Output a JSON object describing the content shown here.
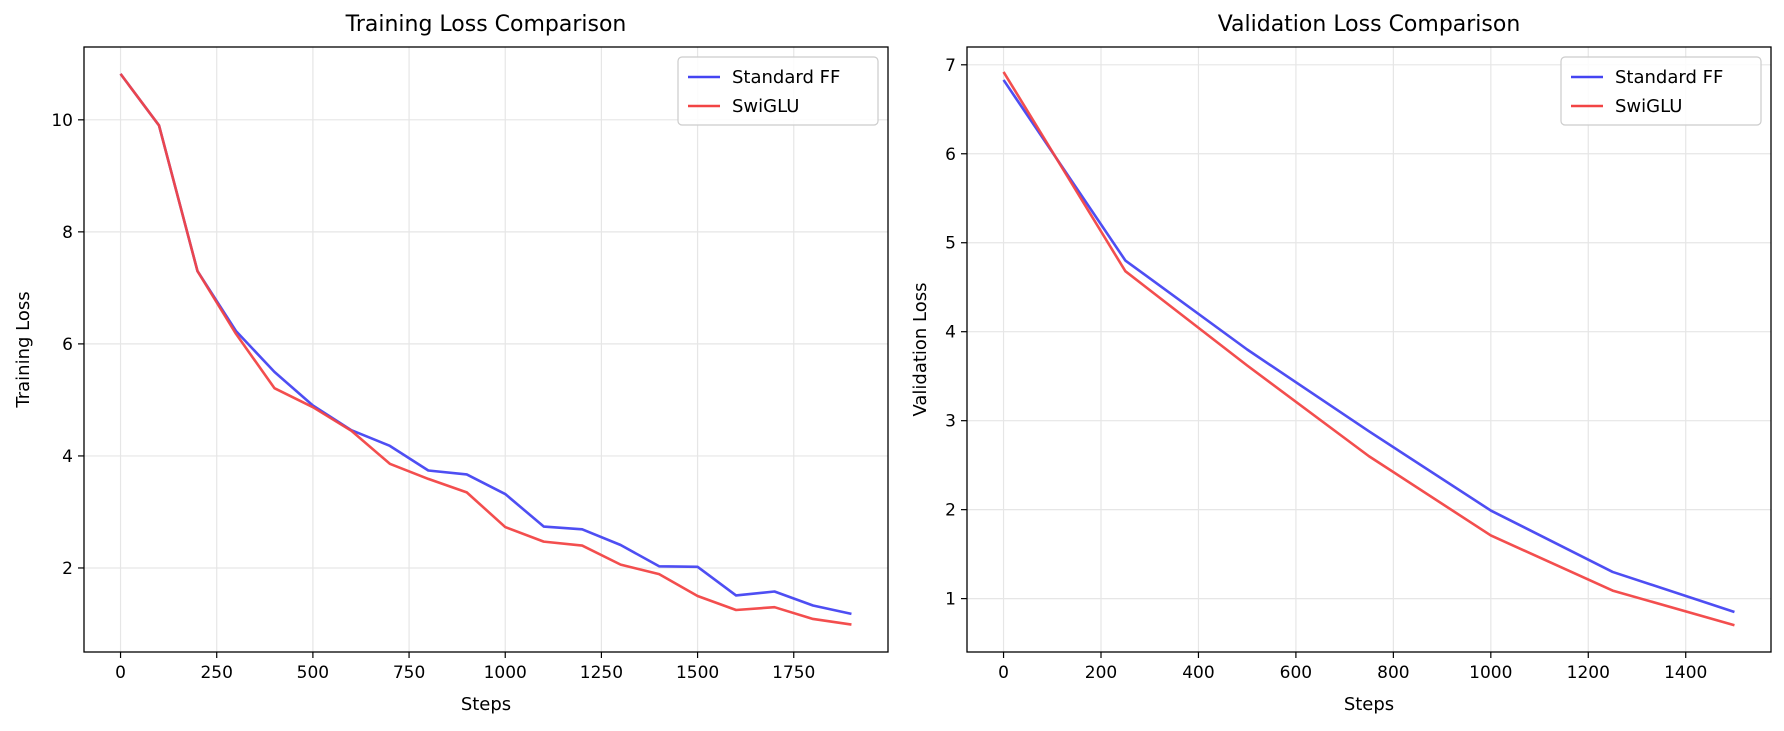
{
  "chart_data": [
    {
      "type": "line",
      "title": "Training Loss Comparison",
      "xlabel": "Steps",
      "ylabel": "Training Loss",
      "xlim": [
        -95,
        1995
      ],
      "ylim": [
        0.5,
        11.3
      ],
      "xticks": [
        0,
        250,
        500,
        750,
        1000,
        1250,
        1500,
        1750
      ],
      "yticks": [
        2,
        4,
        6,
        8,
        10
      ],
      "grid": true,
      "legend": "upper right",
      "x": [
        0,
        100,
        200,
        300,
        400,
        500,
        600,
        700,
        800,
        900,
        1000,
        1100,
        1200,
        1300,
        1400,
        1500,
        1600,
        1700,
        1800,
        1900
      ],
      "series": [
        {
          "name": "Standard FF",
          "color": "#4444f2",
          "values": [
            10.82,
            9.9,
            7.3,
            6.23,
            5.5,
            4.9,
            4.46,
            4.18,
            3.74,
            3.67,
            3.32,
            2.74,
            2.69,
            2.41,
            2.03,
            2.02,
            1.51,
            1.58,
            1.33,
            1.18
          ]
        },
        {
          "name": "SwiGLU",
          "color": "#f24444",
          "values": [
            10.82,
            9.9,
            7.3,
            6.18,
            5.21,
            4.87,
            4.45,
            3.86,
            3.59,
            3.35,
            2.73,
            2.47,
            2.4,
            2.06,
            1.89,
            1.5,
            1.25,
            1.3,
            1.09,
            0.99
          ]
        }
      ]
    },
    {
      "type": "line",
      "title": "Validation Loss Comparison",
      "xlabel": "Steps",
      "ylabel": "Validation Loss",
      "xlim": [
        -75,
        1575
      ],
      "ylim": [
        0.4,
        7.2
      ],
      "xticks": [
        0,
        200,
        400,
        600,
        800,
        1000,
        1200,
        1400
      ],
      "yticks": [
        1,
        2,
        3,
        4,
        5,
        6,
        7
      ],
      "grid": true,
      "legend": "upper right",
      "x": [
        0,
        250,
        500,
        750,
        1000,
        1250,
        1500
      ],
      "series": [
        {
          "name": "Standard FF",
          "color": "#4444f2",
          "values": [
            6.83,
            4.8,
            3.8,
            2.88,
            1.99,
            1.3,
            0.85
          ]
        },
        {
          "name": "SwiGLU",
          "color": "#f24444",
          "values": [
            6.92,
            4.68,
            3.62,
            2.6,
            1.71,
            1.09,
            0.7
          ]
        }
      ]
    }
  ]
}
